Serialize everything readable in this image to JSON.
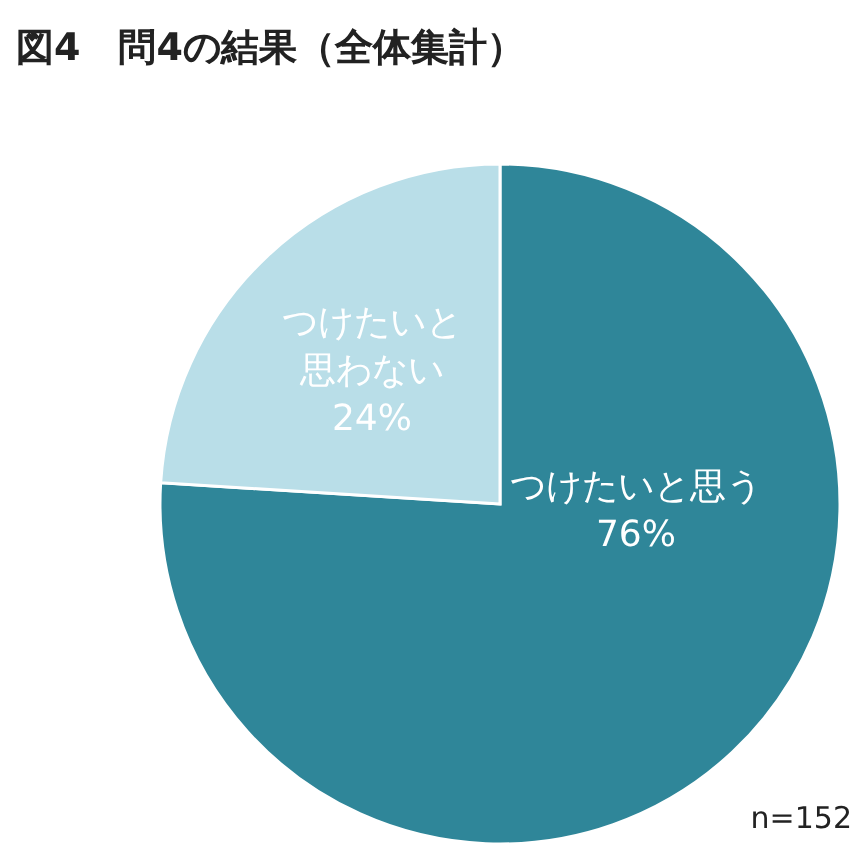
{
  "chart_data": {
    "type": "pie",
    "title": "図4　問4の結果（全体集計）",
    "categories": [
      "つけたいと思う",
      "つけたいと思わない"
    ],
    "values": [
      76,
      24
    ],
    "colors": [
      "#2f8699",
      "#b9dee8"
    ],
    "value_labels": [
      "76%",
      "24%"
    ],
    "annotations": [
      "n=152"
    ]
  }
}
